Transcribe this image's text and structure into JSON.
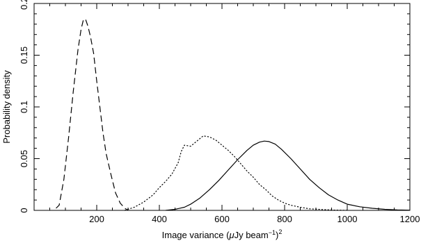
{
  "chart_data": {
    "type": "line",
    "title": "",
    "xlabel": {
      "prefix": "Image variance (",
      "mu": "μ",
      "middle": "Jy beam",
      "sup": "−1",
      "close": ")",
      "sup2": "2"
    },
    "ylabel": "Probability density",
    "xlim": [
      0,
      1200
    ],
    "ylim": [
      0,
      0.2
    ],
    "xticks": [
      {
        "value": 200,
        "label": "200"
      },
      {
        "value": 400,
        "label": "400"
      },
      {
        "value": 600,
        "label": "600"
      },
      {
        "value": 800,
        "label": "800"
      },
      {
        "value": 1000,
        "label": "1000"
      },
      {
        "value": 1200,
        "label": "1200"
      }
    ],
    "yticks": [
      {
        "value": 0,
        "label": "0"
      },
      {
        "value": 0.05,
        "label": "0.05"
      },
      {
        "value": 0.1,
        "label": "0.1"
      },
      {
        "value": 0.15,
        "label": "0.15"
      },
      {
        "value": 0.2,
        "label": "0.2"
      }
    ],
    "grid": false,
    "legend": "none",
    "series": [
      {
        "style": "dashed",
        "color": "#000000",
        "points": [
          [
            70,
            0.002
          ],
          [
            80,
            0.005
          ],
          [
            95,
            0.03
          ],
          [
            110,
            0.07
          ],
          [
            125,
            0.115
          ],
          [
            140,
            0.155
          ],
          [
            150,
            0.175
          ],
          [
            158,
            0.185
          ],
          [
            165,
            0.184
          ],
          [
            172,
            0.178
          ],
          [
            180,
            0.168
          ],
          [
            190,
            0.152
          ],
          [
            200,
            0.125
          ],
          [
            210,
            0.1
          ],
          [
            220,
            0.075
          ],
          [
            230,
            0.055
          ],
          [
            245,
            0.035
          ],
          [
            260,
            0.017
          ],
          [
            275,
            0.007
          ],
          [
            290,
            0.002
          ],
          [
            300,
            0.0
          ]
        ]
      },
      {
        "style": "dotted",
        "color": "#000000",
        "points": [
          [
            290,
            0.0
          ],
          [
            320,
            0.003
          ],
          [
            350,
            0.008
          ],
          [
            380,
            0.015
          ],
          [
            400,
            0.022
          ],
          [
            420,
            0.028
          ],
          [
            440,
            0.035
          ],
          [
            460,
            0.046
          ],
          [
            470,
            0.057
          ],
          [
            480,
            0.063
          ],
          [
            500,
            0.062
          ],
          [
            520,
            0.067
          ],
          [
            540,
            0.072
          ],
          [
            560,
            0.071
          ],
          [
            580,
            0.068
          ],
          [
            600,
            0.063
          ],
          [
            620,
            0.058
          ],
          [
            640,
            0.052
          ],
          [
            660,
            0.045
          ],
          [
            680,
            0.038
          ],
          [
            700,
            0.032
          ],
          [
            720,
            0.025
          ],
          [
            740,
            0.02
          ],
          [
            760,
            0.014
          ],
          [
            780,
            0.01
          ],
          [
            800,
            0.007
          ],
          [
            820,
            0.005
          ],
          [
            850,
            0.003
          ],
          [
            880,
            0.0015
          ],
          [
            920,
            0.0008
          ],
          [
            960,
            0.0003
          ],
          [
            1000,
            0.0001
          ]
        ]
      },
      {
        "style": "solid",
        "color": "#000000",
        "points": [
          [
            420,
            0.0
          ],
          [
            450,
            0.001
          ],
          [
            480,
            0.003
          ],
          [
            500,
            0.006
          ],
          [
            530,
            0.012
          ],
          [
            560,
            0.02
          ],
          [
            590,
            0.029
          ],
          [
            620,
            0.039
          ],
          [
            650,
            0.049
          ],
          [
            680,
            0.058
          ],
          [
            700,
            0.063
          ],
          [
            720,
            0.066
          ],
          [
            735,
            0.067
          ],
          [
            750,
            0.0665
          ],
          [
            770,
            0.064
          ],
          [
            790,
            0.059
          ],
          [
            820,
            0.05
          ],
          [
            850,
            0.04
          ],
          [
            880,
            0.03
          ],
          [
            910,
            0.022
          ],
          [
            940,
            0.015
          ],
          [
            970,
            0.01
          ],
          [
            1000,
            0.006
          ],
          [
            1040,
            0.0035
          ],
          [
            1080,
            0.002
          ],
          [
            1120,
            0.001
          ],
          [
            1160,
            0.0005
          ],
          [
            1200,
            0.0002
          ]
        ]
      }
    ]
  }
}
